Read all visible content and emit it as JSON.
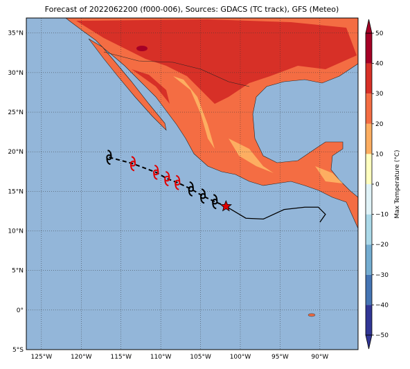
{
  "map": {
    "title": "Forecast of 2022062200 (f000-006), Sources: GDACS (TC track), GFS (Meteo)",
    "lonlim": [
      -126.9,
      -85.2
    ],
    "latlim": [
      -5,
      36.9
    ],
    "lon_ticks": [
      {
        "value": -125,
        "label": "125°W"
      },
      {
        "value": -120,
        "label": "120°W"
      },
      {
        "value": -115,
        "label": "115°W"
      },
      {
        "value": -110,
        "label": "110°W"
      },
      {
        "value": -105,
        "label": "105°W"
      },
      {
        "value": -100,
        "label": "100°W"
      },
      {
        "value": -95,
        "label": "95°W"
      },
      {
        "value": -90,
        "label": "90°W"
      }
    ],
    "lat_ticks": [
      {
        "value": 35,
        "label": "35°N"
      },
      {
        "value": 30,
        "label": "30°N"
      },
      {
        "value": 25,
        "label": "25°N"
      },
      {
        "value": 20,
        "label": "20°N"
      },
      {
        "value": 15,
        "label": "15°N"
      },
      {
        "value": 10,
        "label": "10°N"
      },
      {
        "value": 5,
        "label": "5°N"
      },
      {
        "value": 0,
        "label": "0°"
      },
      {
        "value": -5,
        "label": "5°S"
      }
    ],
    "forecast_track": [
      {
        "lon": -116.5,
        "lat": 19.3,
        "color": "#000000"
      },
      {
        "lon": -113.5,
        "lat": 18.5,
        "color": "#e00000"
      },
      {
        "lon": -110.6,
        "lat": 17.4,
        "color": "#e00000"
      },
      {
        "lon": -109.2,
        "lat": 16.6,
        "color": "#e00000"
      },
      {
        "lon": -107.9,
        "lat": 16.1,
        "color": "#e00000"
      },
      {
        "lon": -106.2,
        "lat": 15.3,
        "color": "#000000"
      },
      {
        "lon": -104.7,
        "lat": 14.4,
        "color": "#000000"
      },
      {
        "lon": -103.2,
        "lat": 13.7,
        "color": "#000000"
      }
    ],
    "current_position": {
      "lon": -101.8,
      "lat": 13.1
    },
    "past_track": {
      "lon": [
        -101.8,
        -99.3,
        -97.1,
        -94.5,
        -91.9,
        -90.2,
        -89.3,
        -90.0
      ],
      "lat": [
        13.1,
        11.6,
        11.5,
        12.7,
        13.0,
        13.0,
        12.1,
        11.1
      ]
    }
  },
  "colorbar": {
    "label": "Max Temperature (°C)",
    "lim": [
      -50,
      50
    ],
    "ticks": [
      {
        "value": 50,
        "label": "50"
      },
      {
        "value": 40,
        "label": "40"
      },
      {
        "value": 30,
        "label": "30"
      },
      {
        "value": 20,
        "label": "20"
      },
      {
        "value": 10,
        "label": "10"
      },
      {
        "value": 0,
        "label": "0"
      },
      {
        "value": -10,
        "label": "−10"
      },
      {
        "value": -20,
        "label": "−20"
      },
      {
        "value": -30,
        "label": "−30"
      },
      {
        "value": -40,
        "label": "−40"
      },
      {
        "value": -50,
        "label": "−50"
      }
    ],
    "colors": [
      "#313695",
      "#4575b4",
      "#74add1",
      "#abd9e9",
      "#e0f3f8",
      "#ffffbf",
      "#fdae61",
      "#f46d43",
      "#d73027",
      "#a50026"
    ]
  }
}
